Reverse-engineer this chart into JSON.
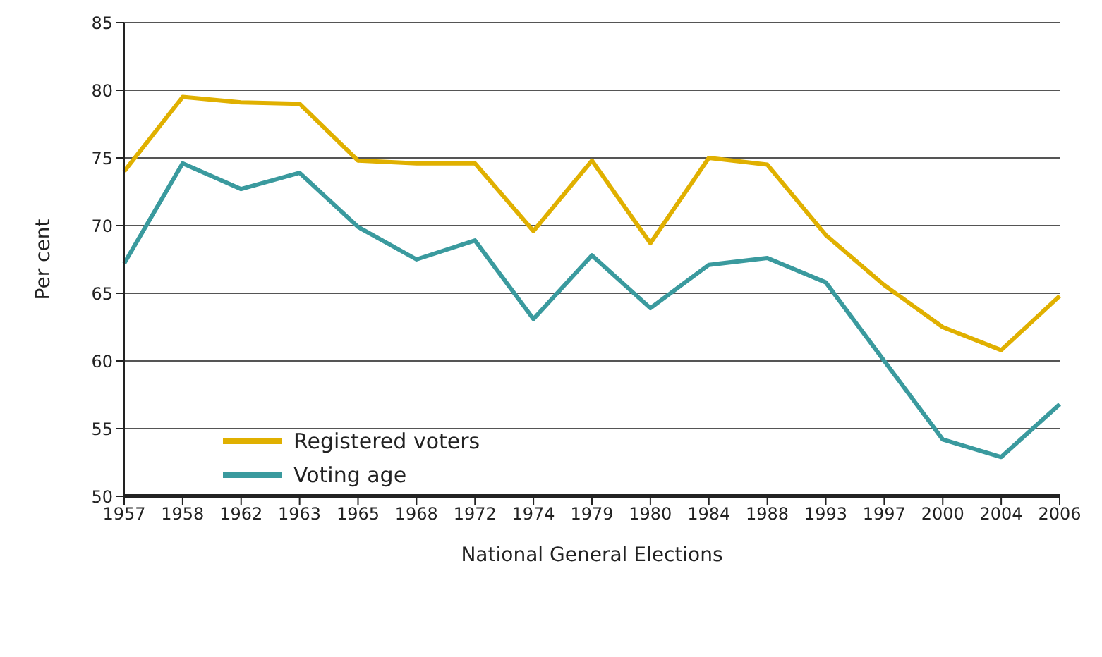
{
  "chart_data": {
    "type": "line",
    "xlabel": "National General Elections",
    "ylabel": "Per cent",
    "categories": [
      "1957",
      "1958",
      "1962",
      "1963",
      "1965",
      "1968",
      "1972",
      "1974",
      "1979",
      "1980",
      "1984",
      "1988",
      "1993",
      "1997",
      "2000",
      "2004",
      "2006"
    ],
    "series": [
      {
        "name": "Registered voters",
        "color": "#e0b000",
        "values": [
          74,
          79.5,
          79.1,
          79,
          74.8,
          74.6,
          74.6,
          69.6,
          74.8,
          68.7,
          75,
          74.5,
          69.3,
          65.6,
          62.5,
          60.8,
          64.8
        ]
      },
      {
        "name": "Voting age",
        "color": "#3a9a9e",
        "values": [
          67.2,
          74.6,
          72.7,
          73.9,
          69.9,
          67.5,
          68.9,
          63.1,
          67.8,
          63.9,
          67.1,
          67.6,
          65.8,
          60,
          54.2,
          52.9,
          56.8
        ]
      }
    ],
    "ylim": [
      50,
      85
    ],
    "yticks": [
      50,
      55,
      60,
      65,
      70,
      75,
      80,
      85
    ],
    "grid": "y",
    "legend": "bottom left",
    "marker": "none",
    "line_style": "solid"
  }
}
